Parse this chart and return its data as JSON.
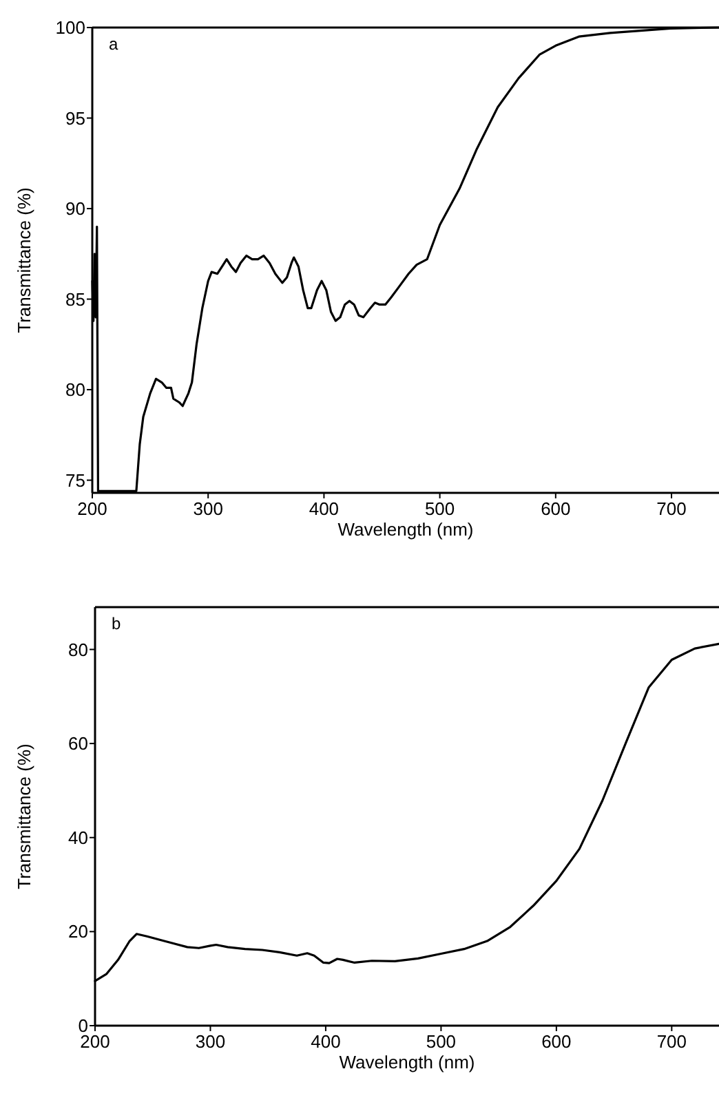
{
  "chart_data": [
    {
      "type": "line",
      "xlabel": "Wavelength (nm)",
      "ylabel": "Transmittance (%)",
      "annotations": [
        "a"
      ],
      "xlim": [
        200,
        741
      ],
      "ylim": [
        74.3,
        100
      ],
      "xticks": [
        200,
        300,
        400,
        500,
        600,
        700
      ],
      "yticks": [
        75,
        80,
        85,
        90,
        95,
        100
      ],
      "series": [
        {
          "color": "#000000",
          "x": [
            200,
            201,
            202,
            203,
            204,
            205,
            238,
            241,
            244,
            250,
            255,
            260,
            264,
            268,
            270,
            275,
            278,
            283,
            286,
            290,
            295,
            300,
            303,
            308,
            313,
            316,
            320,
            324,
            328,
            333,
            338,
            343,
            348,
            353,
            358,
            364,
            368,
            372,
            374,
            378,
            382,
            386,
            389,
            394,
            398,
            402,
            406,
            410,
            414,
            418,
            422,
            426,
            430,
            434,
            440,
            444,
            448,
            453,
            458,
            465,
            473,
            480,
            489,
            500,
            517,
            532,
            550,
            568,
            586,
            600,
            620,
            647,
            699,
            741
          ],
          "values": [
            86,
            83.8,
            87.5,
            84,
            89,
            74.4,
            74.4,
            77,
            78.5,
            79.8,
            80.6,
            80.4,
            80.1,
            80.1,
            79.5,
            79.3,
            79.1,
            79.8,
            80.4,
            82.5,
            84.5,
            86.0,
            86.5,
            86.4,
            86.9,
            87.2,
            86.8,
            86.5,
            87.0,
            87.4,
            87.2,
            87.2,
            87.4,
            87.0,
            86.4,
            85.9,
            86.2,
            87.0,
            87.3,
            86.8,
            85.5,
            84.5,
            84.5,
            85.5,
            86.0,
            85.5,
            84.3,
            83.8,
            84.0,
            84.7,
            84.9,
            84.7,
            84.1,
            84.0,
            84.5,
            84.8,
            84.7,
            84.7,
            85.1,
            85.7,
            86.4,
            86.9,
            87.2,
            89.1,
            91.1,
            93.3,
            95.6,
            97.2,
            98.5,
            99.0,
            99.5,
            99.7,
            99.95,
            100
          ]
        }
      ]
    },
    {
      "type": "line",
      "xlabel": "Wavelength (nm)",
      "ylabel": "Transmittance (%)",
      "annotations": [
        "b"
      ],
      "xlim": [
        200,
        741
      ],
      "ylim": [
        0,
        89
      ],
      "xticks": [
        200,
        300,
        400,
        500,
        600,
        700
      ],
      "yticks": [
        0,
        20,
        40,
        60,
        80
      ],
      "series": [
        {
          "color": "#000000",
          "x": [
            200,
            210,
            220,
            230,
            236,
            245,
            260,
            280,
            290,
            300,
            305,
            315,
            330,
            345,
            360,
            375,
            384,
            390,
            398,
            403,
            410,
            415,
            425,
            440,
            460,
            480,
            500,
            520,
            540,
            560,
            580,
            600,
            620,
            640,
            660,
            680,
            700,
            720,
            741
          ],
          "values": [
            9.5,
            11,
            14,
            18,
            19.5,
            19,
            18,
            16.7,
            16.5,
            17.0,
            17.2,
            16.7,
            16.3,
            16.1,
            15.6,
            14.9,
            15.4,
            14.9,
            13.4,
            13.3,
            14.2,
            14.0,
            13.4,
            13.8,
            13.7,
            14.3,
            15.3,
            16.3,
            18.0,
            21.0,
            25.5,
            30.8,
            37.6,
            47.9,
            60,
            71.9,
            77.8,
            80.2,
            81.2
          ]
        }
      ]
    }
  ]
}
